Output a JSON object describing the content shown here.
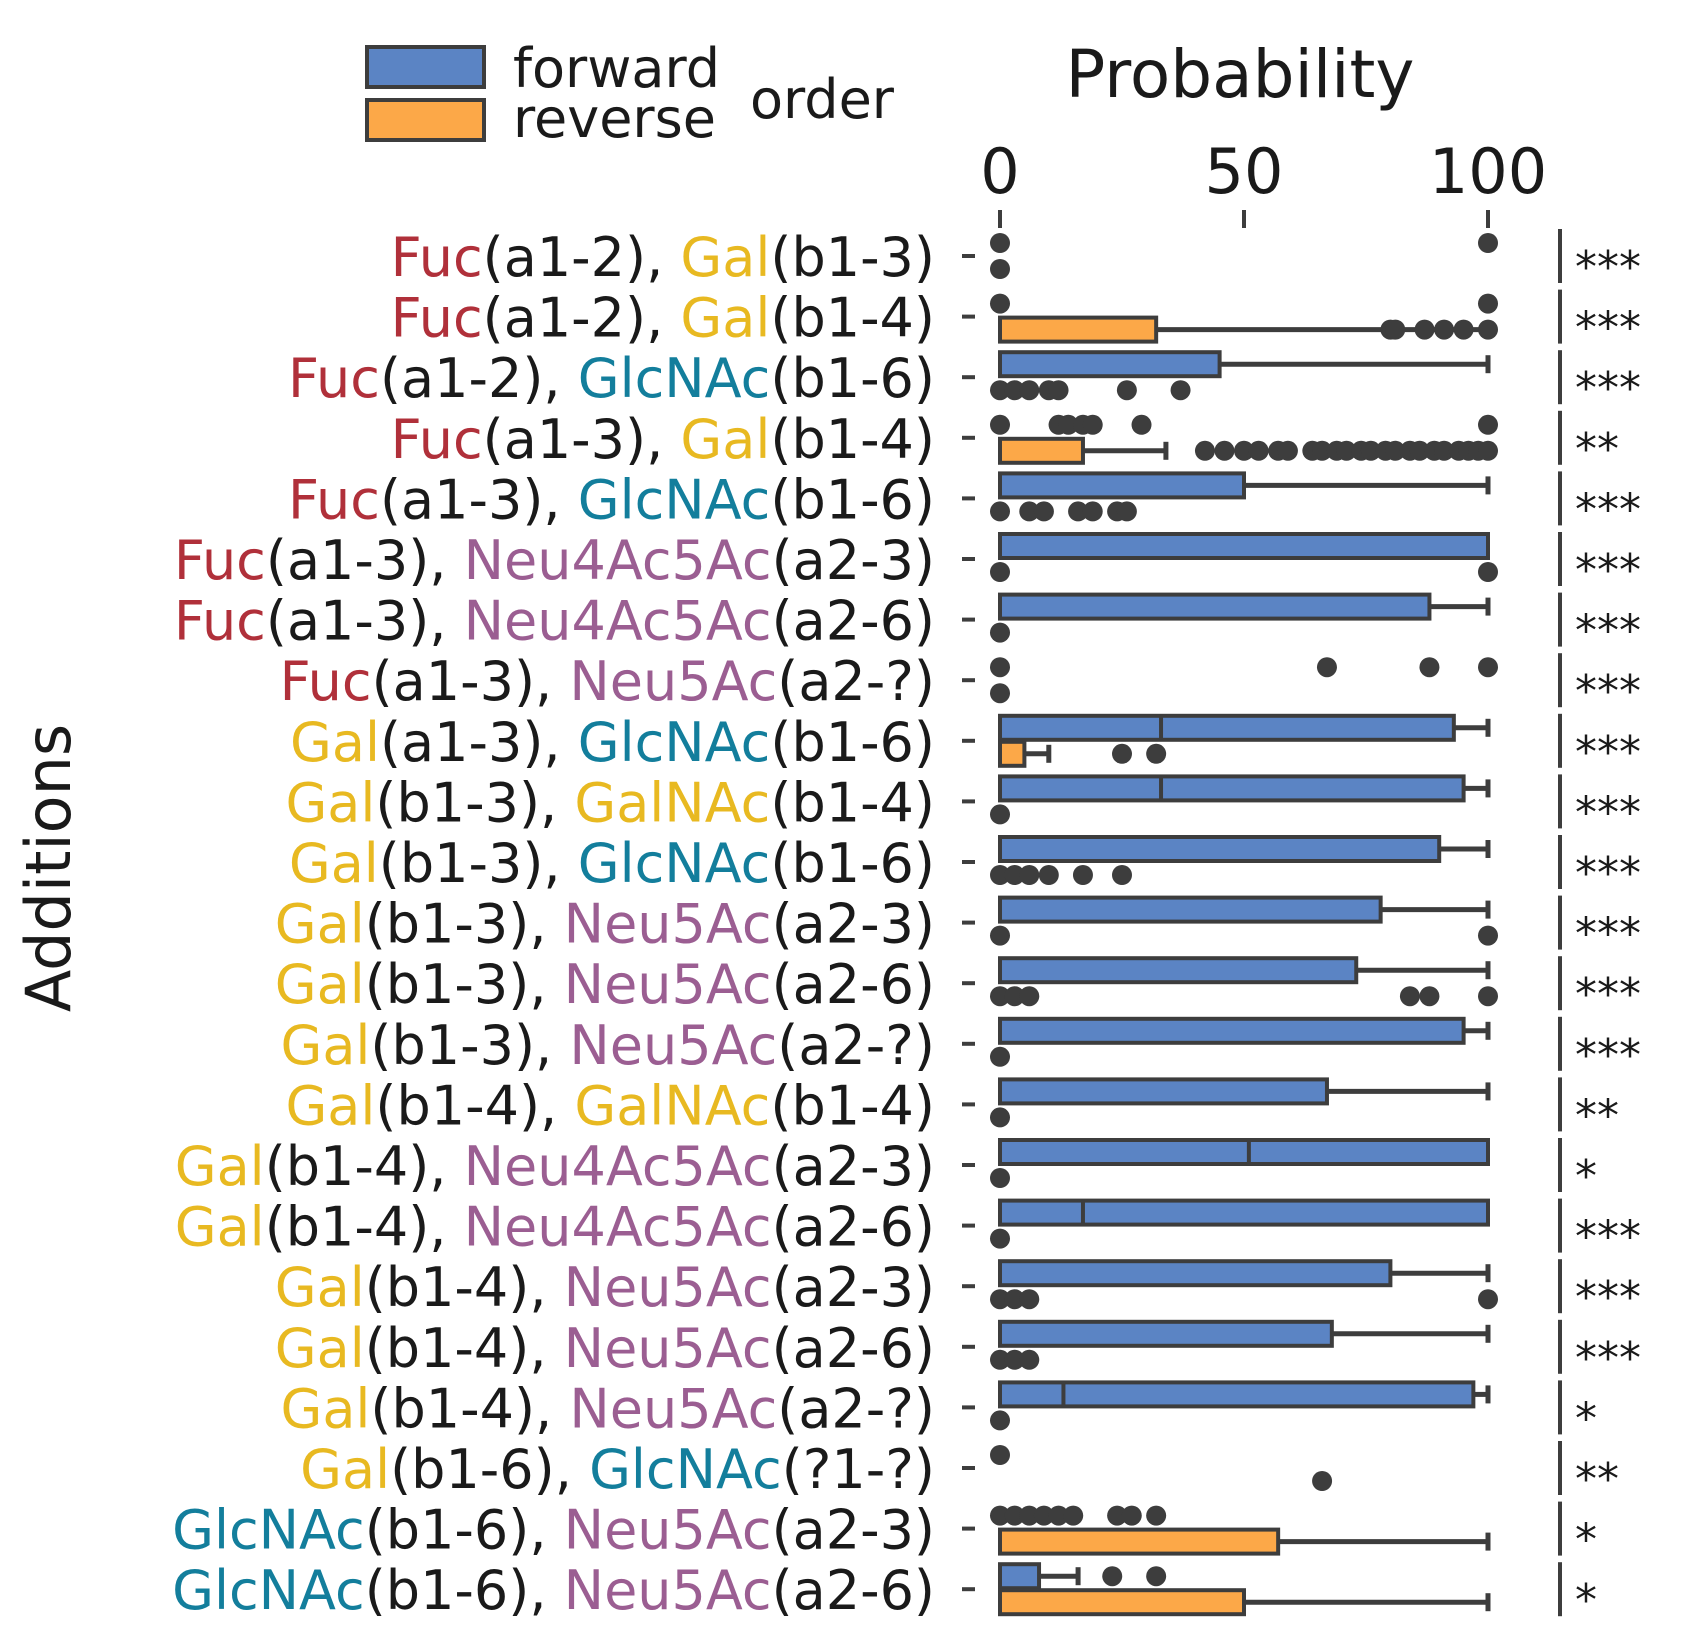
{
  "colors": {
    "forward": "#5b84c4",
    "reverse": "#fca848",
    "outline": "#3d3d3d",
    "Fuc": "#b0303a",
    "Gal": "#e8b921",
    "GlcNAc": "#137e9c",
    "GalNAc": "#e8b921",
    "Neu4Ac5Ac": "#9b5e92",
    "Neu5Ac": "#9b5e92"
  },
  "legend": {
    "forward": "forward",
    "reverse": "reverse",
    "order": "order"
  },
  "chart_data": {
    "type": "bar",
    "title": "Probability",
    "xlabel": "Probability",
    "ylabel": "Additions",
    "xlim": [
      0,
      100
    ],
    "xticks": [
      0,
      50,
      100
    ],
    "series_names": [
      "forward",
      "reverse"
    ],
    "rows": [
      {
        "parts": [
          [
            "Fuc",
            "Fuc"
          ],
          [
            "(a1-2), ",
            "plain"
          ],
          [
            "Gal",
            "Gal"
          ],
          [
            "(b1-3)",
            "plain"
          ]
        ],
        "sig": "***",
        "forward": {
          "value": 0,
          "median": null,
          "whisker": null,
          "points": [
            0,
            100
          ]
        },
        "reverse": {
          "value": 0,
          "median": null,
          "whisker": null,
          "points": [
            0
          ]
        }
      },
      {
        "parts": [
          [
            "Fuc",
            "Fuc"
          ],
          [
            "(a1-2), ",
            "plain"
          ],
          [
            "Gal",
            "Gal"
          ],
          [
            "(b1-4)",
            "plain"
          ]
        ],
        "sig": "***",
        "forward": {
          "value": 0,
          "median": null,
          "whisker": null,
          "points": [
            0,
            100
          ]
        },
        "reverse": {
          "value": 32,
          "median": null,
          "whisker": 100,
          "points": [
            80,
            81,
            87,
            91,
            95,
            100
          ]
        }
      },
      {
        "parts": [
          [
            "Fuc",
            "Fuc"
          ],
          [
            "(a1-2), ",
            "plain"
          ],
          [
            "GlcNAc",
            "GlcNAc"
          ],
          [
            "(b1-6)",
            "plain"
          ]
        ],
        "sig": "***",
        "forward": {
          "value": 45,
          "median": null,
          "whisker": 100,
          "points": []
        },
        "reverse": {
          "value": 0,
          "median": null,
          "whisker": null,
          "points": [
            0,
            3,
            6,
            10,
            12,
            26,
            37
          ]
        }
      },
      {
        "parts": [
          [
            "Fuc",
            "Fuc"
          ],
          [
            "(a1-3), ",
            "plain"
          ],
          [
            "Gal",
            "Gal"
          ],
          [
            "(b1-4)",
            "plain"
          ]
        ],
        "sig": "**",
        "forward": {
          "value": 0,
          "median": null,
          "whisker": null,
          "points": [
            0,
            12,
            14,
            17,
            19,
            29,
            100
          ]
        },
        "reverse": {
          "value": 17,
          "median": null,
          "whisker": 34,
          "points": [
            42,
            46,
            50,
            53,
            57,
            59,
            64,
            66,
            69,
            71,
            74,
            76,
            79,
            81,
            84,
            86,
            89,
            91,
            94,
            96,
            98,
            100
          ]
        }
      },
      {
        "parts": [
          [
            "Fuc",
            "Fuc"
          ],
          [
            "(a1-3), ",
            "plain"
          ],
          [
            "GlcNAc",
            "GlcNAc"
          ],
          [
            "(b1-6)",
            "plain"
          ]
        ],
        "sig": "***",
        "forward": {
          "value": 50,
          "median": null,
          "whisker": 100,
          "points": []
        },
        "reverse": {
          "value": 0,
          "median": null,
          "whisker": null,
          "points": [
            0,
            6,
            9,
            16,
            19,
            24,
            26
          ]
        }
      },
      {
        "parts": [
          [
            "Fuc",
            "Fuc"
          ],
          [
            "(a1-3), ",
            "plain"
          ],
          [
            "Neu4Ac5Ac",
            "Neu4Ac5Ac"
          ],
          [
            "(a2-3)",
            "plain"
          ]
        ],
        "sig": "***",
        "forward": {
          "value": 100,
          "median": null,
          "whisker": null,
          "points": []
        },
        "reverse": {
          "value": 0,
          "median": null,
          "whisker": null,
          "points": [
            0,
            100
          ]
        }
      },
      {
        "parts": [
          [
            "Fuc",
            "Fuc"
          ],
          [
            "(a1-3), ",
            "plain"
          ],
          [
            "Neu4Ac5Ac",
            "Neu4Ac5Ac"
          ],
          [
            "(a2-6)",
            "plain"
          ]
        ],
        "sig": "***",
        "forward": {
          "value": 88,
          "median": null,
          "whisker": 100,
          "points": []
        },
        "reverse": {
          "value": 0,
          "median": null,
          "whisker": null,
          "points": [
            0
          ]
        }
      },
      {
        "parts": [
          [
            "Fuc",
            "Fuc"
          ],
          [
            "(a1-3), ",
            "plain"
          ],
          [
            "Neu5Ac",
            "Neu5Ac"
          ],
          [
            "(a2-?)",
            "plain"
          ]
        ],
        "sig": "***",
        "forward": {
          "value": 0,
          "median": null,
          "whisker": null,
          "points": [
            0,
            67,
            88,
            100
          ]
        },
        "reverse": {
          "value": 0,
          "median": null,
          "whisker": null,
          "points": [
            0
          ]
        }
      },
      {
        "parts": [
          [
            "Gal",
            "Gal"
          ],
          [
            "(a1-3), ",
            "plain"
          ],
          [
            "GlcNAc",
            "GlcNAc"
          ],
          [
            "(b1-6)",
            "plain"
          ]
        ],
        "sig": "***",
        "forward": {
          "value": 93,
          "median": 33,
          "whisker": 100,
          "points": []
        },
        "reverse": {
          "value": 5,
          "median": null,
          "whisker": 10,
          "points": [
            25,
            32
          ]
        }
      },
      {
        "parts": [
          [
            "Gal",
            "Gal"
          ],
          [
            "(b1-3), ",
            "plain"
          ],
          [
            "GalNAc",
            "GalNAc"
          ],
          [
            "(b1-4)",
            "plain"
          ]
        ],
        "sig": "***",
        "forward": {
          "value": 95,
          "median": 33,
          "whisker": 100,
          "points": []
        },
        "reverse": {
          "value": 0,
          "median": null,
          "whisker": null,
          "points": [
            0
          ]
        }
      },
      {
        "parts": [
          [
            "Gal",
            "Gal"
          ],
          [
            "(b1-3), ",
            "plain"
          ],
          [
            "GlcNAc",
            "GlcNAc"
          ],
          [
            "(b1-6)",
            "plain"
          ]
        ],
        "sig": "***",
        "forward": {
          "value": 90,
          "median": null,
          "whisker": 100,
          "points": []
        },
        "reverse": {
          "value": 0,
          "median": null,
          "whisker": null,
          "points": [
            0,
            3,
            6,
            10,
            17,
            25
          ]
        }
      },
      {
        "parts": [
          [
            "Gal",
            "Gal"
          ],
          [
            "(b1-3), ",
            "plain"
          ],
          [
            "Neu5Ac",
            "Neu5Ac"
          ],
          [
            "(a2-3)",
            "plain"
          ]
        ],
        "sig": "***",
        "forward": {
          "value": 78,
          "median": null,
          "whisker": 100,
          "points": []
        },
        "reverse": {
          "value": 0,
          "median": null,
          "whisker": null,
          "points": [
            0,
            100
          ]
        }
      },
      {
        "parts": [
          [
            "Gal",
            "Gal"
          ],
          [
            "(b1-3), ",
            "plain"
          ],
          [
            "Neu5Ac",
            "Neu5Ac"
          ],
          [
            "(a2-6)",
            "plain"
          ]
        ],
        "sig": "***",
        "forward": {
          "value": 73,
          "median": null,
          "whisker": 100,
          "points": []
        },
        "reverse": {
          "value": 0,
          "median": null,
          "whisker": null,
          "points": [
            0,
            3,
            6,
            84,
            88,
            100
          ]
        }
      },
      {
        "parts": [
          [
            "Gal",
            "Gal"
          ],
          [
            "(b1-3), ",
            "plain"
          ],
          [
            "Neu5Ac",
            "Neu5Ac"
          ],
          [
            "(a2-?)",
            "plain"
          ]
        ],
        "sig": "***",
        "forward": {
          "value": 95,
          "median": null,
          "whisker": 100,
          "points": []
        },
        "reverse": {
          "value": 0,
          "median": null,
          "whisker": null,
          "points": [
            0
          ]
        }
      },
      {
        "parts": [
          [
            "Gal",
            "Gal"
          ],
          [
            "(b1-4), ",
            "plain"
          ],
          [
            "GalNAc",
            "GalNAc"
          ],
          [
            "(b1-4)",
            "plain"
          ]
        ],
        "sig": "**",
        "forward": {
          "value": 67,
          "median": null,
          "whisker": 100,
          "points": []
        },
        "reverse": {
          "value": 0,
          "median": null,
          "whisker": null,
          "points": [
            0
          ]
        }
      },
      {
        "parts": [
          [
            "Gal",
            "Gal"
          ],
          [
            "(b1-4), ",
            "plain"
          ],
          [
            "Neu4Ac5Ac",
            "Neu4Ac5Ac"
          ],
          [
            "(a2-3)",
            "plain"
          ]
        ],
        "sig": "*",
        "forward": {
          "value": 100,
          "median": 51,
          "whisker": null,
          "points": []
        },
        "reverse": {
          "value": 0,
          "median": null,
          "whisker": null,
          "points": [
            0
          ]
        }
      },
      {
        "parts": [
          [
            "Gal",
            "Gal"
          ],
          [
            "(b1-4), ",
            "plain"
          ],
          [
            "Neu4Ac5Ac",
            "Neu4Ac5Ac"
          ],
          [
            "(a2-6)",
            "plain"
          ]
        ],
        "sig": "***",
        "forward": {
          "value": 100,
          "median": 17,
          "whisker": null,
          "points": []
        },
        "reverse": {
          "value": 0,
          "median": null,
          "whisker": null,
          "points": [
            0
          ]
        }
      },
      {
        "parts": [
          [
            "Gal",
            "Gal"
          ],
          [
            "(b1-4), ",
            "plain"
          ],
          [
            "Neu5Ac",
            "Neu5Ac"
          ],
          [
            "(a2-3)",
            "plain"
          ]
        ],
        "sig": "***",
        "forward": {
          "value": 80,
          "median": null,
          "whisker": 100,
          "points": []
        },
        "reverse": {
          "value": 0,
          "median": null,
          "whisker": null,
          "points": [
            0,
            3,
            6,
            100
          ]
        }
      },
      {
        "parts": [
          [
            "Gal",
            "Gal"
          ],
          [
            "(b1-4), ",
            "plain"
          ],
          [
            "Neu5Ac",
            "Neu5Ac"
          ],
          [
            "(a2-6)",
            "plain"
          ]
        ],
        "sig": "***",
        "forward": {
          "value": 68,
          "median": null,
          "whisker": 100,
          "points": []
        },
        "reverse": {
          "value": 0,
          "median": null,
          "whisker": null,
          "points": [
            0,
            3,
            6
          ]
        }
      },
      {
        "parts": [
          [
            "Gal",
            "Gal"
          ],
          [
            "(b1-4), ",
            "plain"
          ],
          [
            "Neu5Ac",
            "Neu5Ac"
          ],
          [
            "(a2-?)",
            "plain"
          ]
        ],
        "sig": "*",
        "forward": {
          "value": 97,
          "median": 13,
          "whisker": 100,
          "points": []
        },
        "reverse": {
          "value": 0,
          "median": null,
          "whisker": null,
          "points": [
            0
          ]
        }
      },
      {
        "parts": [
          [
            "Gal",
            "Gal"
          ],
          [
            "(b1-6), ",
            "plain"
          ],
          [
            "GlcNAc",
            "GlcNAc"
          ],
          [
            "(?1-?)",
            "plain"
          ]
        ],
        "sig": "**",
        "forward": {
          "value": 0,
          "median": null,
          "whisker": null,
          "points": [
            0
          ]
        },
        "reverse": {
          "value": 0,
          "median": null,
          "whisker": null,
          "points": [
            66
          ]
        }
      },
      {
        "parts": [
          [
            "GlcNAc",
            "GlcNAc"
          ],
          [
            "(b1-6), ",
            "plain"
          ],
          [
            "Neu5Ac",
            "Neu5Ac"
          ],
          [
            "(a2-3)",
            "plain"
          ]
        ],
        "sig": "*",
        "forward": {
          "value": 0,
          "median": null,
          "whisker": null,
          "points": [
            0,
            3,
            6,
            9,
            12,
            15,
            24,
            27,
            32
          ]
        },
        "reverse": {
          "value": 57,
          "median": null,
          "whisker": 100,
          "points": []
        }
      },
      {
        "parts": [
          [
            "GlcNAc",
            "GlcNAc"
          ],
          [
            "(b1-6), ",
            "plain"
          ],
          [
            "Neu5Ac",
            "Neu5Ac"
          ],
          [
            "(a2-6)",
            "plain"
          ]
        ],
        "sig": "*",
        "forward": {
          "value": 8,
          "median": null,
          "whisker": 16,
          "points": [
            23,
            32
          ]
        },
        "reverse": {
          "value": 50,
          "median": null,
          "whisker": 100,
          "points": []
        }
      }
    ]
  }
}
